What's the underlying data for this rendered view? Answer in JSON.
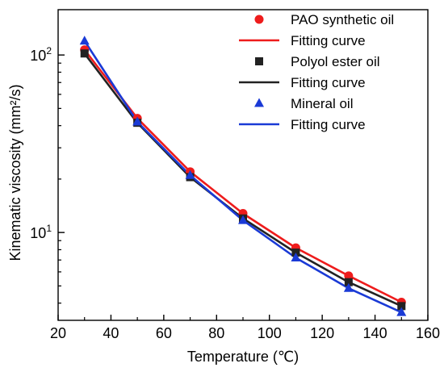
{
  "chart_data": {
    "type": "scatter",
    "xlabel": "Temperature (℃)",
    "ylabel": "Kinematic viscosity (mm²/s)",
    "xlim": [
      20,
      160
    ],
    "ylim": [
      3.2,
      180
    ],
    "yscale": "log",
    "x_ticks": [
      20,
      40,
      60,
      80,
      100,
      120,
      140,
      160
    ],
    "x_tick_labels": [
      "20",
      "40",
      "60",
      "80",
      "100",
      "120",
      "140",
      "160"
    ],
    "y_major_ticks": [
      10,
      100
    ],
    "y_tick_labels": [
      {
        "base": "10",
        "exp": "1"
      },
      {
        "base": "10",
        "exp": "2"
      }
    ],
    "y_minor_ticks": [
      4,
      5,
      6,
      7,
      8,
      9,
      20,
      30,
      40,
      50,
      60,
      70,
      80,
      90
    ],
    "grid": false,
    "legend_position": "top-right",
    "x": [
      30,
      50,
      70,
      90,
      110,
      130,
      150
    ],
    "series": [
      {
        "name": "PAO synthetic oil",
        "fit_name": "Fitting curve",
        "marker": "circle",
        "color": "#ee1c1c",
        "values": [
          107,
          44,
          22,
          12.8,
          8.2,
          5.7,
          4.05
        ]
      },
      {
        "name": "Polyol ester oil",
        "fit_name": "Fitting curve",
        "marker": "square",
        "color": "#222222",
        "values": [
          102,
          41.5,
          20.5,
          12.0,
          7.7,
          5.25,
          3.85
        ]
      },
      {
        "name": "Mineral oil",
        "fit_name": "Fitting curve",
        "marker": "triangle",
        "color": "#1a3ad6",
        "values": [
          120,
          42,
          21,
          11.7,
          7.2,
          4.85,
          3.55
        ]
      }
    ]
  }
}
